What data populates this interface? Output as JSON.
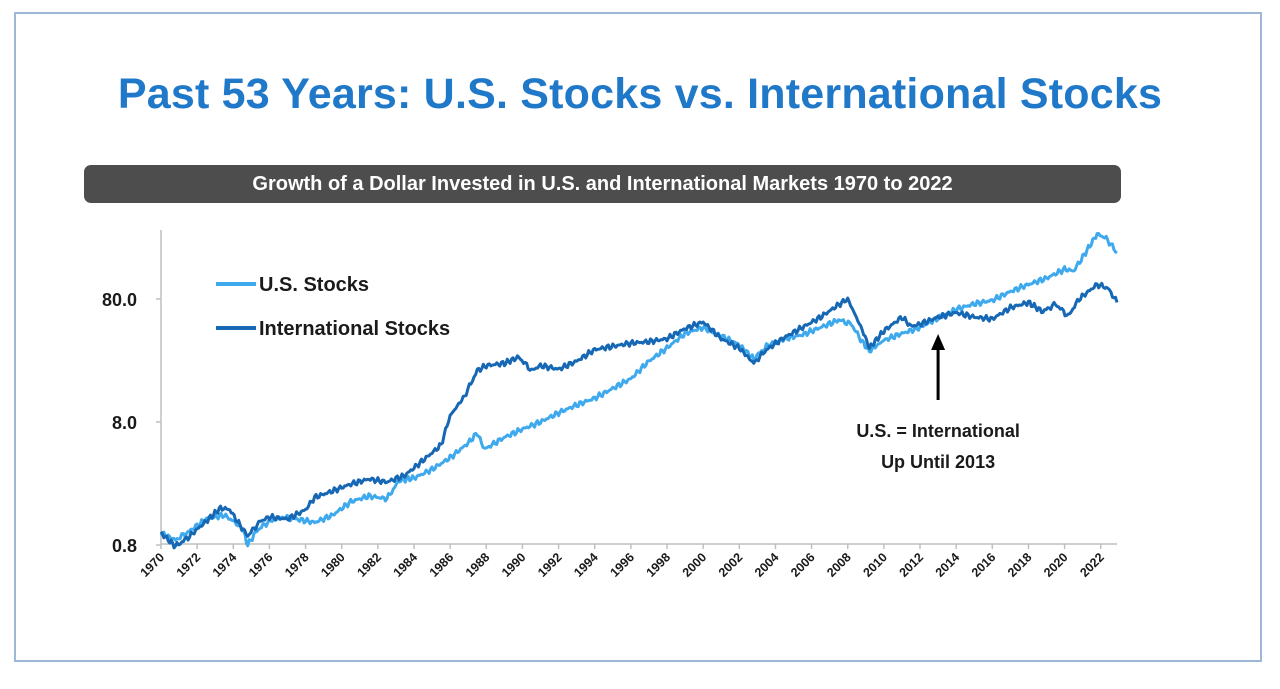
{
  "page": {
    "title": "Past 53 Years: U.S. Stocks vs. International Stocks",
    "subtitle": "Growth of a Dollar Invested in U.S. and International Markets 1970 to 2022"
  },
  "colors": {
    "us": "#3fa9ee",
    "intl": "#1667b4",
    "title": "#1f78c8",
    "bar": "#4d4d4d"
  },
  "chart_data": {
    "type": "line",
    "title": "Growth of a Dollar Invested in U.S. and International Markets 1970 to 2022",
    "xlim": [
      1970,
      2022.9
    ],
    "ylim": [
      0.8,
      1100
    ],
    "yscale": "log",
    "grid": false,
    "legend": "top-left",
    "yticks": [
      {
        "value": 0.8,
        "label": "0.8"
      },
      {
        "value": 8,
        "label": "8.0"
      },
      {
        "value": 80,
        "label": "80.0"
      }
    ],
    "xticks": [
      "1970",
      "1972",
      "1974",
      "1976",
      "1978",
      "1980",
      "1982",
      "1984",
      "1986",
      "1988",
      "1990",
      "1992",
      "1994",
      "1996",
      "1998",
      "2000",
      "2002",
      "2004",
      "2006",
      "2008",
      "2010",
      "2012",
      "2014",
      "2016",
      "2018",
      "2020",
      "2022"
    ],
    "annotation": {
      "line1": "U.S. = International",
      "line2": "Up Until 2013",
      "x": 2013
    },
    "series": [
      {
        "name": "U.S. Stocks",
        "key": "us",
        "points": [
          [
            1970,
            1.0
          ],
          [
            1970.8,
            0.88
          ],
          [
            1971.5,
            1.02
          ],
          [
            1972.5,
            1.3
          ],
          [
            1973.5,
            1.4
          ],
          [
            1974.0,
            1.25
          ],
          [
            1974.5,
            1.1
          ],
          [
            1974.8,
            0.8
          ],
          [
            1975.3,
            1.05
          ],
          [
            1976.0,
            1.25
          ],
          [
            1976.8,
            1.35
          ],
          [
            1977.5,
            1.3
          ],
          [
            1978.5,
            1.22
          ],
          [
            1979.5,
            1.4
          ],
          [
            1980.5,
            1.8
          ],
          [
            1981.5,
            2.0
          ],
          [
            1982.5,
            1.9
          ],
          [
            1983.2,
            2.7
          ],
          [
            1984.0,
            2.8
          ],
          [
            1985.0,
            3.3
          ],
          [
            1986.0,
            4.1
          ],
          [
            1987.0,
            5.4
          ],
          [
            1987.5,
            6.5
          ],
          [
            1987.9,
            4.8
          ],
          [
            1989.0,
            6.0
          ],
          [
            1990.0,
            7.0
          ],
          [
            1991.0,
            8.0
          ],
          [
            1992.0,
            9.5
          ],
          [
            1993.0,
            11.0
          ],
          [
            1994.0,
            12.5
          ],
          [
            1995.0,
            15.0
          ],
          [
            1996.0,
            18.0
          ],
          [
            1997.0,
            25.0
          ],
          [
            1998.0,
            32.0
          ],
          [
            1999.0,
            42.0
          ],
          [
            2000.0,
            47.0
          ],
          [
            2001.0,
            40.0
          ],
          [
            2002.0,
            34.0
          ],
          [
            2002.8,
            26.0
          ],
          [
            2003.5,
            33.0
          ],
          [
            2004.5,
            38.0
          ],
          [
            2005.5,
            41.0
          ],
          [
            2006.5,
            47.0
          ],
          [
            2007.5,
            54.0
          ],
          [
            2008.2,
            50.0
          ],
          [
            2008.8,
            36.0
          ],
          [
            2009.2,
            30.0
          ],
          [
            2010.0,
            37.0
          ],
          [
            2011.0,
            42.0
          ],
          [
            2012.0,
            47.0
          ],
          [
            2013.0,
            56.0
          ],
          [
            2014.0,
            66.0
          ],
          [
            2015.0,
            73.0
          ],
          [
            2016.0,
            78.0
          ],
          [
            2017.0,
            92.0
          ],
          [
            2018.0,
            105.0
          ],
          [
            2019.0,
            118.0
          ],
          [
            2020.0,
            140.0
          ],
          [
            2020.5,
            135.0
          ],
          [
            2021.0,
            175.0
          ],
          [
            2021.8,
            270.0
          ],
          [
            2022.3,
            250.0
          ],
          [
            2022.9,
            190.0
          ]
        ]
      },
      {
        "name": "International Stocks",
        "key": "intl",
        "points": [
          [
            1970,
            1.0
          ],
          [
            1970.8,
            0.78
          ],
          [
            1971.5,
            0.92
          ],
          [
            1972.5,
            1.25
          ],
          [
            1973.3,
            1.6
          ],
          [
            1973.8,
            1.55
          ],
          [
            1974.3,
            1.2
          ],
          [
            1974.8,
            0.95
          ],
          [
            1975.5,
            1.25
          ],
          [
            1976.0,
            1.35
          ],
          [
            1977.0,
            1.3
          ],
          [
            1978.0,
            1.55
          ],
          [
            1978.5,
            1.95
          ],
          [
            1979.5,
            2.2
          ],
          [
            1980.5,
            2.5
          ],
          [
            1981.5,
            2.75
          ],
          [
            1982.5,
            2.6
          ],
          [
            1983.5,
            2.95
          ],
          [
            1984.5,
            3.9
          ],
          [
            1985.5,
            5.2
          ],
          [
            1986.0,
            9.0
          ],
          [
            1986.8,
            13.0
          ],
          [
            1987.5,
            21.0
          ],
          [
            1988.0,
            23.0
          ],
          [
            1989.0,
            24.0
          ],
          [
            1989.8,
            27.0
          ],
          [
            1990.5,
            21.0
          ],
          [
            1991.0,
            23.0
          ],
          [
            1992.0,
            21.5
          ],
          [
            1993.0,
            25.0
          ],
          [
            1994.0,
            31.0
          ],
          [
            1995.0,
            33.0
          ],
          [
            1996.0,
            35.0
          ],
          [
            1997.0,
            36.0
          ],
          [
            1998.0,
            38.0
          ],
          [
            1999.0,
            46.0
          ],
          [
            2000.0,
            52.0
          ],
          [
            2001.0,
            38.0
          ],
          [
            2002.0,
            32.0
          ],
          [
            2002.8,
            24.0
          ],
          [
            2003.5,
            31.0
          ],
          [
            2004.5,
            39.0
          ],
          [
            2005.5,
            47.0
          ],
          [
            2006.5,
            57.0
          ],
          [
            2007.5,
            72.0
          ],
          [
            2008.0,
            80.0
          ],
          [
            2008.8,
            45.0
          ],
          [
            2009.2,
            32.0
          ],
          [
            2010.0,
            44.0
          ],
          [
            2011.0,
            57.0
          ],
          [
            2011.5,
            48.0
          ],
          [
            2012.0,
            50.0
          ],
          [
            2013.0,
            57.0
          ],
          [
            2014.0,
            62.0
          ],
          [
            2015.0,
            57.0
          ],
          [
            2016.0,
            55.0
          ],
          [
            2017.0,
            68.0
          ],
          [
            2018.0,
            75.0
          ],
          [
            2018.8,
            63.0
          ],
          [
            2019.5,
            73.0
          ],
          [
            2020.2,
            58.0
          ],
          [
            2020.8,
            80.0
          ],
          [
            2021.8,
            105.0
          ],
          [
            2022.4,
            98.0
          ],
          [
            2022.9,
            75.0
          ]
        ]
      }
    ]
  }
}
